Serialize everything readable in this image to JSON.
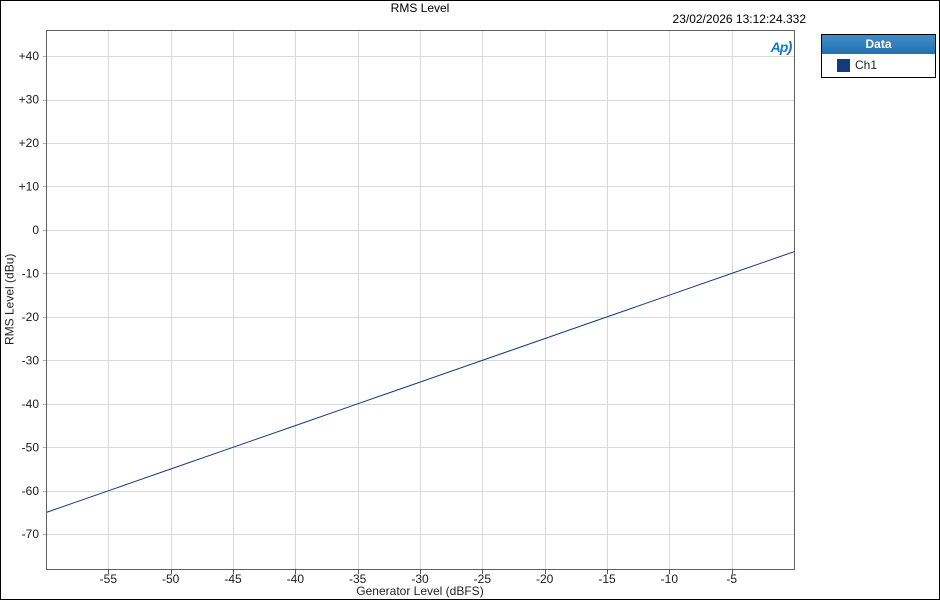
{
  "header": {
    "title": "RMS Level",
    "timestamp": "23/02/2026 13:12:24.332"
  },
  "logo": {
    "text": "Ap",
    "swoosh": ")",
    "color": "#1b76bc"
  },
  "legend": {
    "title": "Data",
    "header_bg": "#2b7cbd",
    "items": [
      {
        "label": "Ch1",
        "color": "#16387f"
      }
    ]
  },
  "chart_data": {
    "type": "line",
    "title": "RMS Level",
    "xlabel": "Generator Level (dBFS)",
    "ylabel": "RMS Level (dBu)",
    "xlim": [
      -60,
      0
    ],
    "ylim": [
      -78,
      46
    ],
    "xticks": [
      -55,
      -50,
      -45,
      -40,
      -35,
      -30,
      -25,
      -20,
      -15,
      -10,
      -5
    ],
    "xtick_labels": [
      "-55",
      "-50",
      "-45",
      "-40",
      "-35",
      "-30",
      "-25",
      "-20",
      "-15",
      "-10",
      "-5"
    ],
    "yticks": [
      40,
      30,
      20,
      10,
      0,
      -10,
      -20,
      -30,
      -40,
      -50,
      -60,
      -70
    ],
    "ytick_labels": [
      "+40",
      "+30",
      "+20",
      "+10",
      "0",
      "-10",
      "-20",
      "-30",
      "-40",
      "-50",
      "-60",
      "-70"
    ],
    "grid": true,
    "legend_position": "outside-right",
    "x": [
      -60,
      -55,
      -50,
      -45,
      -40,
      -35,
      -30,
      -25,
      -20,
      -15,
      -10,
      -5,
      0
    ],
    "series": [
      {
        "name": "Ch1",
        "color": "#16387f",
        "values": [
          -65,
          -60,
          -55,
          -50,
          -45,
          -40,
          -35,
          -30,
          -25,
          -20,
          -15,
          -10,
          -5
        ]
      }
    ],
    "colors": {
      "grid": "#d9d9d9",
      "border": "#606060",
      "tick": "#555555",
      "minor_tick": "#b0b0b0",
      "text": "#1a1a1a"
    }
  }
}
